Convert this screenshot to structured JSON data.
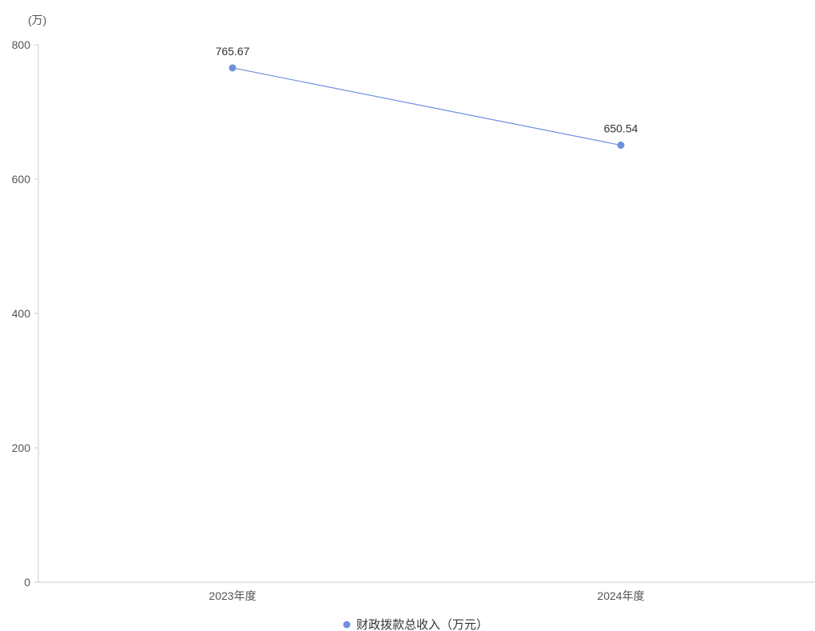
{
  "chart_data": {
    "type": "line",
    "y_unit_label": "(万)",
    "categories": [
      "2023年度",
      "2024年度"
    ],
    "series": [
      {
        "name": "财政拨款总收入（万元）",
        "values": [
          765.67,
          650.54
        ],
        "value_labels": [
          "765.67",
          "650.54"
        ],
        "color": "#6e8fdc"
      }
    ],
    "ylim": [
      0,
      800
    ],
    "yticks": [
      0,
      200,
      400,
      600,
      800
    ],
    "ytick_labels": [
      "0",
      "200",
      "400",
      "600",
      "800"
    ],
    "grid": false,
    "legend_position": "bottom-center"
  },
  "colors": {
    "axis": "#cccccc",
    "series": "#6e8fdc"
  }
}
